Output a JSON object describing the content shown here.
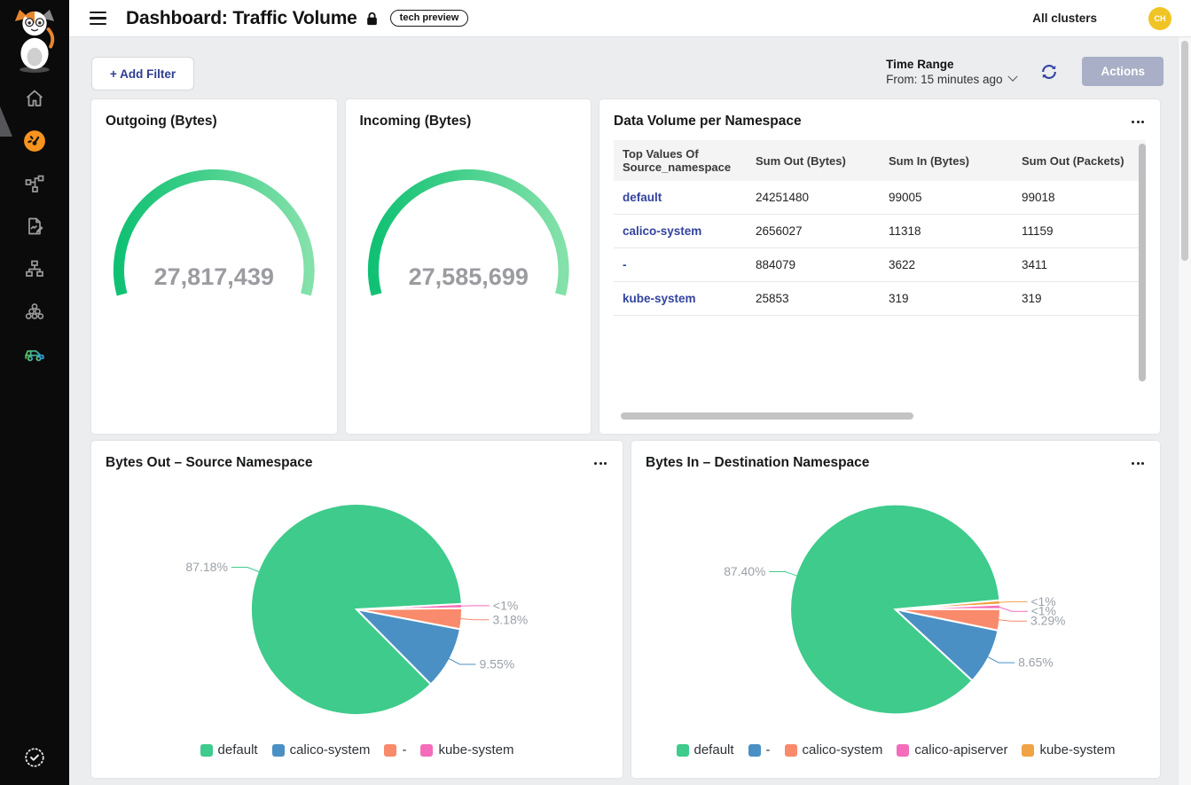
{
  "header": {
    "title": "Dashboard: Traffic Volume",
    "tech_preview_badge": "tech preview",
    "cluster_scope": "All clusters",
    "avatar_initials": "CH"
  },
  "toolbar": {
    "add_filter": "+ Add Filter",
    "time_range_label": "Time Range",
    "time_range_value": "From: 15 minutes ago",
    "actions": "Actions"
  },
  "sidebar": {
    "icons": [
      "calico-cat-logo",
      "home-icon",
      "dashboard-gauge-icon",
      "service-graph-icon",
      "flow-logs-icon",
      "network-tree-icon",
      "workloads-cluster-icon",
      "car-icon",
      "verified-check-icon"
    ],
    "active_item": "dashboard-gauge-icon",
    "active_color": "#f7941e"
  },
  "colors": {
    "link_blue": "#33439f",
    "avatar_yellow": "#f0c425",
    "actions_button": "#a8afc6",
    "gauge_green_start": "#10c173",
    "gauge_green_end": "#84e1aa",
    "pie_green": "#3ecb8c",
    "pie_blue": "#4a90c4",
    "pie_salmon": "#f98a6b",
    "pie_pink": "#f56cba",
    "pie_orange": "#f0a345"
  },
  "table_card": {
    "title": "Data Volume per Namespace",
    "columns": [
      "Top Values Of Source_namespace",
      "Sum Out (Bytes)",
      "Sum In (Bytes)",
      "Sum Out (Packets)"
    ],
    "rows": [
      [
        "default",
        "24251480",
        "99005",
        "99018"
      ],
      [
        "calico-system",
        "2656027",
        "11318",
        "11159"
      ],
      [
        "-",
        "884079",
        "3622",
        "3411"
      ],
      [
        "kube-system",
        "25853",
        "319",
        "319"
      ]
    ]
  },
  "chart_data": [
    {
      "type": "gauge",
      "title": "Outgoing (Bytes)",
      "value": 27817439,
      "display_value": "27,817,439",
      "arc_degrees": 210,
      "color_start": "#10c173",
      "color_end": "#84e1aa"
    },
    {
      "type": "gauge",
      "title": "Incoming (Bytes)",
      "value": 27585699,
      "display_value": "27,585,699",
      "arc_degrees": 210,
      "color_start": "#10c173",
      "color_end": "#84e1aa"
    },
    {
      "type": "pie",
      "title": "Bytes Out – Source Namespace",
      "start_angle": 87,
      "slices": [
        {
          "name": "kube-system",
          "pct": 0.09,
          "label": "<1%",
          "color": "#f56cba"
        },
        {
          "name": "-",
          "pct": 3.18,
          "label": "3.18%",
          "color": "#f98a6b"
        },
        {
          "name": "calico-system",
          "pct": 9.55,
          "label": "9.55%",
          "color": "#4a90c4"
        },
        {
          "name": "default",
          "pct": 87.18,
          "label": "87.18%",
          "color": "#3ecb8c"
        }
      ],
      "legend": [
        {
          "label": "default",
          "color": "#3ecb8c"
        },
        {
          "label": "calico-system",
          "color": "#4a90c4"
        },
        {
          "label": "-",
          "color": "#f98a6b"
        },
        {
          "label": "kube-system",
          "color": "#f56cba"
        }
      ]
    },
    {
      "type": "pie",
      "title": "Bytes In – Destination Namespace",
      "start_angle": 85,
      "slices": [
        {
          "name": "kube-system",
          "pct": 0.62,
          "label": "<1%",
          "color": "#f0a345"
        },
        {
          "name": "calico-apiserver",
          "pct": 0.66,
          "label": "<1%",
          "color": "#f56cba"
        },
        {
          "name": "calico-system",
          "pct": 3.29,
          "label": "3.29%",
          "color": "#f98a6b"
        },
        {
          "name": "-",
          "pct": 8.65,
          "label": "8.65%",
          "color": "#4a90c4"
        },
        {
          "name": "default",
          "pct": 87.4,
          "label": "87.40%",
          "color": "#3ecb8c"
        }
      ],
      "legend": [
        {
          "label": "default",
          "color": "#3ecb8c"
        },
        {
          "label": "-",
          "color": "#4a90c4"
        },
        {
          "label": "calico-system",
          "color": "#f98a6b"
        },
        {
          "label": "calico-apiserver",
          "color": "#f56cba"
        },
        {
          "label": "kube-system",
          "color": "#f0a345"
        }
      ]
    }
  ]
}
